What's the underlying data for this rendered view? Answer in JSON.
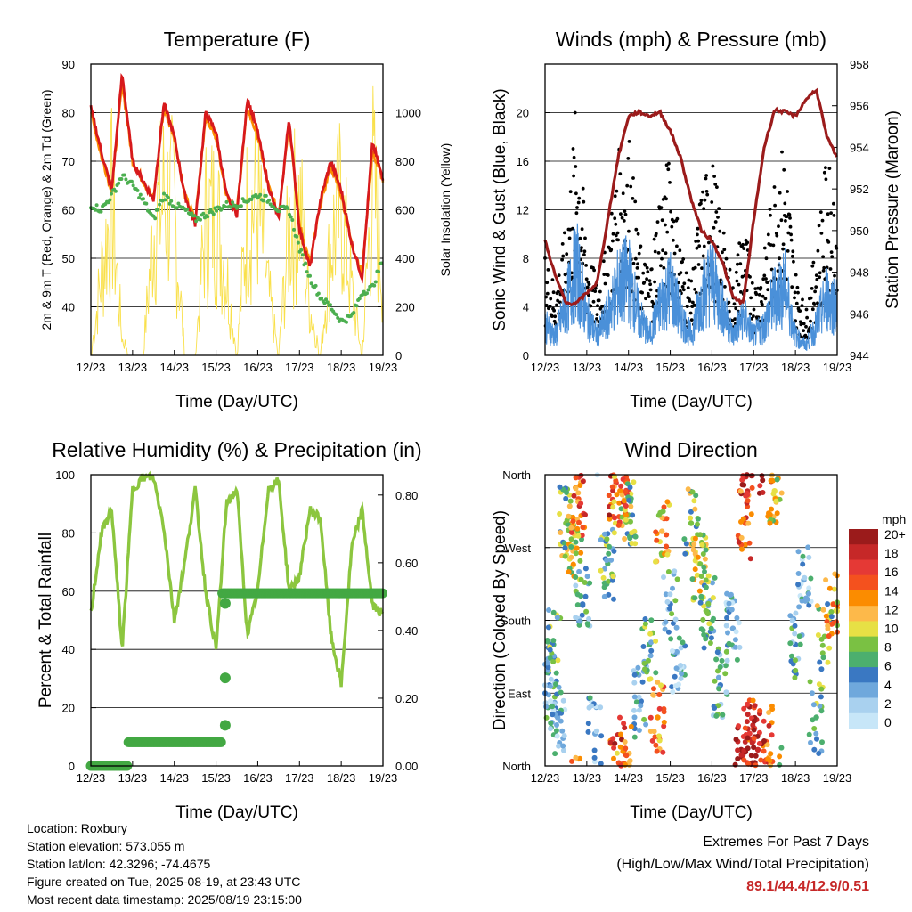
{
  "x_tick_labels": [
    "12/23",
    "13/23",
    "14/23",
    "15/23",
    "16/23",
    "17/23",
    "18/23",
    "19/23"
  ],
  "x_axis_label": "Time (Day/UTC)",
  "colors": {
    "temp_red": "#d7191c",
    "temp_orange": "#fb8c00",
    "dewpoint_green": "#4caf50",
    "solar_yellow": "#f9e04b",
    "wind_blue": "#4a90d9",
    "gust_black": "#000000",
    "pressure_maroon": "#9b1b1b",
    "rh_green": "#8cc63f",
    "precip_green": "#43a843"
  },
  "chart_data": [
    {
      "type": "line",
      "title": "Temperature (F)",
      "xlabel": "Time (Day/UTC)",
      "ylabel": "2m & 9m T (Red, Orange) & 2m Td (Green)",
      "ylabel_right": "Solar Insolation (Yellow)",
      "ylim": [
        30,
        90
      ],
      "yticks": [
        "40",
        "50",
        "60",
        "70",
        "80",
        "90"
      ],
      "ylim_right": [
        0,
        1200
      ],
      "yticks_right": [
        "0",
        "200",
        "400",
        "600",
        "800",
        "1000"
      ],
      "x": [
        0,
        0.25,
        0.5,
        0.75,
        1,
        1.25,
        1.5,
        1.75,
        2,
        2.25,
        2.5,
        2.75,
        3,
        3.25,
        3.5,
        3.75,
        4,
        4.25,
        4.5,
        4.75,
        5,
        5.25,
        5.5,
        5.75,
        6,
        6.25,
        6.5,
        6.75,
        7
      ],
      "series": [
        {
          "name": "2m T",
          "values": [
            81,
            72,
            64,
            88,
            70,
            66,
            62,
            82,
            75,
            63,
            57,
            80,
            76,
            63,
            59,
            83,
            76,
            65,
            58,
            79,
            56,
            48,
            62,
            70,
            64,
            53,
            46,
            74,
            66
          ]
        },
        {
          "name": "9m T",
          "values": [
            80,
            71,
            64,
            86,
            70,
            66,
            62,
            81,
            75,
            63,
            58,
            79,
            75,
            63,
            60,
            81,
            75,
            65,
            59,
            78,
            57,
            49,
            61,
            69,
            63,
            53,
            47,
            72,
            66
          ]
        },
        {
          "name": "2m Td",
          "values": [
            61,
            60,
            63,
            67,
            65,
            62,
            58,
            63,
            61,
            60,
            58,
            59,
            60,
            61,
            61,
            62,
            63,
            62,
            60,
            60,
            52,
            46,
            42,
            40,
            37,
            38,
            43,
            44,
            50
          ]
        },
        {
          "name": "Solar Insolation",
          "values": [
            0,
            500,
            950,
            100,
            0,
            0,
            800,
            1000,
            900,
            0,
            0,
            850,
            900,
            500,
            0,
            900,
            950,
            400,
            0,
            800,
            950,
            300,
            0,
            700,
            950,
            400,
            0,
            1100,
            500
          ]
        }
      ]
    },
    {
      "type": "line",
      "title": "Winds (mph) & Pressure (mb)",
      "xlabel": "Time (Day/UTC)",
      "ylabel": "Sonic Wind & Gust (Blue, Black)",
      "ylabel_right": "Station Pressure (Maroon)",
      "ylim": [
        0,
        24
      ],
      "yticks": [
        "0",
        "4",
        "8",
        "12",
        "16",
        "20"
      ],
      "ylim_right": [
        944,
        958
      ],
      "yticks_right": [
        "944",
        "946",
        "948",
        "950",
        "952",
        "954",
        "956",
        "958"
      ],
      "x": [
        0,
        0.25,
        0.5,
        0.75,
        1,
        1.25,
        1.5,
        1.75,
        2,
        2.25,
        2.5,
        2.75,
        3,
        3.25,
        3.5,
        3.75,
        4,
        4.25,
        4.5,
        4.75,
        5,
        5.25,
        5.5,
        5.75,
        6,
        6.25,
        6.5,
        6.75,
        7
      ],
      "series": [
        {
          "name": "Sonic Wind",
          "values": [
            3,
            2,
            5,
            9,
            4,
            2,
            4,
            7,
            8,
            4,
            2,
            5,
            7,
            4,
            2,
            6,
            8,
            5,
            2,
            4,
            2,
            3,
            6,
            7,
            2,
            1,
            3,
            6,
            5
          ]
        },
        {
          "name": "Gust",
          "values": [
            7,
            5,
            9,
            18,
            8,
            5,
            8,
            14,
            16,
            8,
            6,
            12,
            14,
            8,
            5,
            12,
            14,
            9,
            5,
            10,
            5,
            7,
            13,
            15,
            6,
            3,
            8,
            14,
            10
          ]
        },
        {
          "name": "Station Pressure",
          "values": [
            949.5,
            947.8,
            946.5,
            946.5,
            947.0,
            947.5,
            950.5,
            953.5,
            955.5,
            955.7,
            955.5,
            955.7,
            954.8,
            953.5,
            951.5,
            950.0,
            949.5,
            948.5,
            946.8,
            946.5,
            950.5,
            954.0,
            955.8,
            955.7,
            955.5,
            956.3,
            956.8,
            954.5,
            953.5
          ]
        }
      ]
    },
    {
      "type": "line",
      "title": "Relative Humidity (%) & Precipitation (in)",
      "xlabel": "Time (Day/UTC)",
      "ylabel": "Percent & Total Rainfall",
      "ylim": [
        0,
        100
      ],
      "yticks": [
        "0",
        "20",
        "40",
        "60",
        "80",
        "100"
      ],
      "ylim_right": [
        0,
        0.86
      ],
      "yticks_right": [
        "0.00",
        "0.20",
        "0.40",
        "0.60",
        "0.80"
      ],
      "x": [
        0,
        0.25,
        0.5,
        0.75,
        1,
        1.25,
        1.5,
        1.75,
        2,
        2.25,
        2.5,
        2.75,
        3,
        3.25,
        3.5,
        3.75,
        4,
        4.25,
        4.5,
        4.75,
        5,
        5.25,
        5.5,
        5.75,
        6,
        6.25,
        6.5,
        6.75,
        7
      ],
      "series": [
        {
          "name": "Relative Humidity",
          "values": [
            52,
            80,
            88,
            40,
            95,
            99,
            99,
            82,
            50,
            70,
            95,
            60,
            40,
            90,
            95,
            45,
            60,
            95,
            98,
            60,
            65,
            88,
            85,
            45,
            28,
            75,
            88,
            55,
            52
          ]
        },
        {
          "name": "Total Rainfall",
          "values": [
            0,
            0,
            0,
            0,
            0.07,
            0.07,
            0.07,
            0.07,
            0.07,
            0.07,
            0.07,
            0.07,
            0.07,
            0.51,
            0.51,
            0.51,
            0.51,
            0.51,
            0.51,
            0.51,
            0.51,
            0.51,
            0.51,
            0.51,
            0.51,
            0.51,
            0.51,
            0.51,
            0.51
          ]
        }
      ]
    },
    {
      "type": "scatter",
      "title": "Wind Direction",
      "xlabel": "Time (Day/UTC)",
      "ylabel": "Direction (Colored By Speed)",
      "yticks": [
        "North",
        "East",
        "South",
        "West",
        "North"
      ],
      "colorbar_title": "mph",
      "colorbar_labels": [
        "20+",
        "18",
        "16",
        "14",
        "12",
        "10",
        "8",
        "6",
        "4",
        "2",
        "0"
      ],
      "colorbar_colors": [
        "#9b1b1b",
        "#c62828",
        "#e53935",
        "#f4511e",
        "#fb8c00",
        "#fdb94a",
        "#e7e045",
        "#7ac143",
        "#4caf6e",
        "#3a78c2",
        "#6fa8dc",
        "#a9d1ef",
        "#c7e6f8"
      ],
      "points": [
        {
          "day": 0.1,
          "dir": 100,
          "spd": 3
        },
        {
          "day": 0.2,
          "dir": 150,
          "spd": 4
        },
        {
          "day": 0.3,
          "dir": 60,
          "spd": 2
        },
        {
          "day": 0.5,
          "dir": 300,
          "spd": 5
        },
        {
          "day": 0.7,
          "dir": 270,
          "spd": 6
        },
        {
          "day": 0.8,
          "dir": 330,
          "spd": 9
        },
        {
          "day": 0.9,
          "dir": 200,
          "spd": 3
        },
        {
          "day": 1.2,
          "dir": 40,
          "spd": 2
        },
        {
          "day": 1.5,
          "dir": 250,
          "spd": 4
        },
        {
          "day": 1.7,
          "dir": 350,
          "spd": 10
        },
        {
          "day": 1.8,
          "dir": 340,
          "spd": 8
        },
        {
          "day": 1.9,
          "dir": 20,
          "spd": 9
        },
        {
          "day": 2.0,
          "dir": 310,
          "spd": 5
        },
        {
          "day": 2.3,
          "dir": 80,
          "spd": 3
        },
        {
          "day": 2.5,
          "dir": 150,
          "spd": 4
        },
        {
          "day": 2.7,
          "dir": 60,
          "spd": 8
        },
        {
          "day": 2.8,
          "dir": 290,
          "spd": 7
        },
        {
          "day": 3.0,
          "dir": 200,
          "spd": 3
        },
        {
          "day": 3.2,
          "dir": 120,
          "spd": 2
        },
        {
          "day": 3.5,
          "dir": 300,
          "spd": 5
        },
        {
          "day": 3.7,
          "dir": 250,
          "spd": 6
        },
        {
          "day": 3.9,
          "dir": 190,
          "spd": 4
        },
        {
          "day": 4.2,
          "dir": 100,
          "spd": 3
        },
        {
          "day": 4.5,
          "dir": 170,
          "spd": 2
        },
        {
          "day": 4.7,
          "dir": 20,
          "spd": 12
        },
        {
          "day": 4.8,
          "dir": 300,
          "spd": 9
        },
        {
          "day": 4.9,
          "dir": 40,
          "spd": 10
        },
        {
          "day": 5.1,
          "dir": 20,
          "spd": 11
        },
        {
          "day": 5.3,
          "dir": 30,
          "spd": 9
        },
        {
          "day": 5.5,
          "dir": 340,
          "spd": 6
        },
        {
          "day": 6.0,
          "dir": 150,
          "spd": 3
        },
        {
          "day": 6.2,
          "dir": 230,
          "spd": 2
        },
        {
          "day": 6.5,
          "dir": 60,
          "spd": 4
        },
        {
          "day": 6.7,
          "dir": 160,
          "spd": 5
        },
        {
          "day": 6.9,
          "dir": 200,
          "spd": 7
        }
      ]
    }
  ],
  "footer": {
    "location": "Location: Roxbury",
    "elevation": "Station elevation: 573.055 m",
    "latlon": "Station lat/lon: 42.3296; -74.4675",
    "created": "Figure created on Tue, 2025-08-19, at 23:43 UTC",
    "recent": "Most recent data timestamp: 2025/08/19 23:15:00",
    "extremes_title": "Extremes For Past 7 Days",
    "extremes_sub": "(High/Low/Max Wind/Total Precipitation)",
    "extremes_values": "89.1/44.4/12.9/0.51"
  }
}
